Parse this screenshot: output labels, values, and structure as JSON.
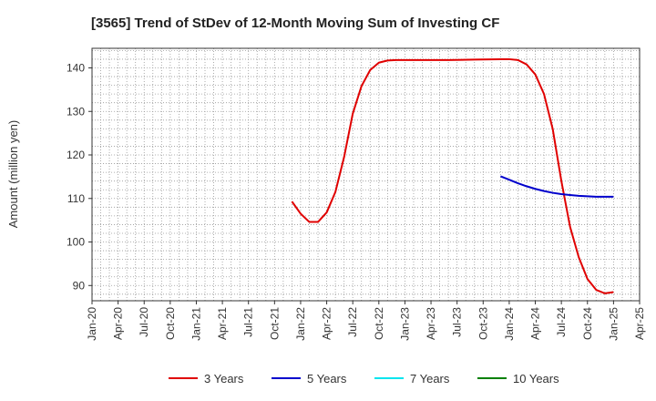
{
  "chart_data": {
    "type": "line",
    "title": "[3565]  Trend of StDev of 12-Month Moving Sum of Investing CF",
    "xlabel": "",
    "ylabel": "Amount (million yen)",
    "x_ticks": [
      "Jan-20",
      "Apr-20",
      "Jul-20",
      "Oct-20",
      "Jan-21",
      "Apr-21",
      "Jul-21",
      "Oct-21",
      "Jan-22",
      "Apr-22",
      "Jul-22",
      "Oct-22",
      "Jan-23",
      "Apr-23",
      "Jul-23",
      "Oct-23",
      "Jan-24",
      "Apr-24",
      "Jul-24",
      "Oct-24",
      "Jan-25",
      "Apr-25"
    ],
    "y_ticks": [
      90,
      100,
      110,
      120,
      130,
      140
    ],
    "ylim": [
      86.5,
      144.5
    ],
    "x_range": [
      "2020-01",
      "2025-04"
    ],
    "grid": true,
    "legend_position": "bottom",
    "series": [
      {
        "name": "3 Years",
        "color": "#e00000",
        "points": [
          [
            "2021-12",
            109.3
          ],
          [
            "2022-01",
            106.5
          ],
          [
            "2022-02",
            104.6
          ],
          [
            "2022-03",
            104.6
          ],
          [
            "2022-04",
            106.8
          ],
          [
            "2022-05",
            111.5
          ],
          [
            "2022-06",
            119.5
          ],
          [
            "2022-07",
            129.5
          ],
          [
            "2022-08",
            135.8
          ],
          [
            "2022-09",
            139.5
          ],
          [
            "2022-10",
            141.2
          ],
          [
            "2022-11",
            141.7
          ],
          [
            "2022-12",
            141.8
          ],
          [
            "2023-03",
            141.8
          ],
          [
            "2023-06",
            141.8
          ],
          [
            "2023-09",
            141.9
          ],
          [
            "2023-12",
            142.0
          ],
          [
            "2024-01",
            142.0
          ],
          [
            "2024-02",
            141.8
          ],
          [
            "2024-03",
            140.8
          ],
          [
            "2024-04",
            138.5
          ],
          [
            "2024-05",
            134.0
          ],
          [
            "2024-06",
            126.0
          ],
          [
            "2024-07",
            114.0
          ],
          [
            "2024-08",
            103.5
          ],
          [
            "2024-09",
            96.5
          ],
          [
            "2024-10",
            91.5
          ],
          [
            "2024-11",
            89.0
          ],
          [
            "2024-12",
            88.2
          ],
          [
            "2025-01",
            88.5
          ]
        ]
      },
      {
        "name": "5 Years",
        "color": "#0000cc",
        "points": [
          [
            "2023-12",
            115.1
          ],
          [
            "2024-01",
            114.3
          ],
          [
            "2024-02",
            113.5
          ],
          [
            "2024-03",
            112.8
          ],
          [
            "2024-04",
            112.2
          ],
          [
            "2024-05",
            111.7
          ],
          [
            "2024-06",
            111.3
          ],
          [
            "2024-07",
            111.0
          ],
          [
            "2024-08",
            110.8
          ],
          [
            "2024-09",
            110.6
          ],
          [
            "2024-10",
            110.5
          ],
          [
            "2024-11",
            110.4
          ],
          [
            "2024-12",
            110.4
          ],
          [
            "2025-01",
            110.4
          ]
        ]
      },
      {
        "name": "7 Years",
        "color": "#00e5ee",
        "points": []
      },
      {
        "name": "10 Years",
        "color": "#008000",
        "points": []
      }
    ]
  }
}
